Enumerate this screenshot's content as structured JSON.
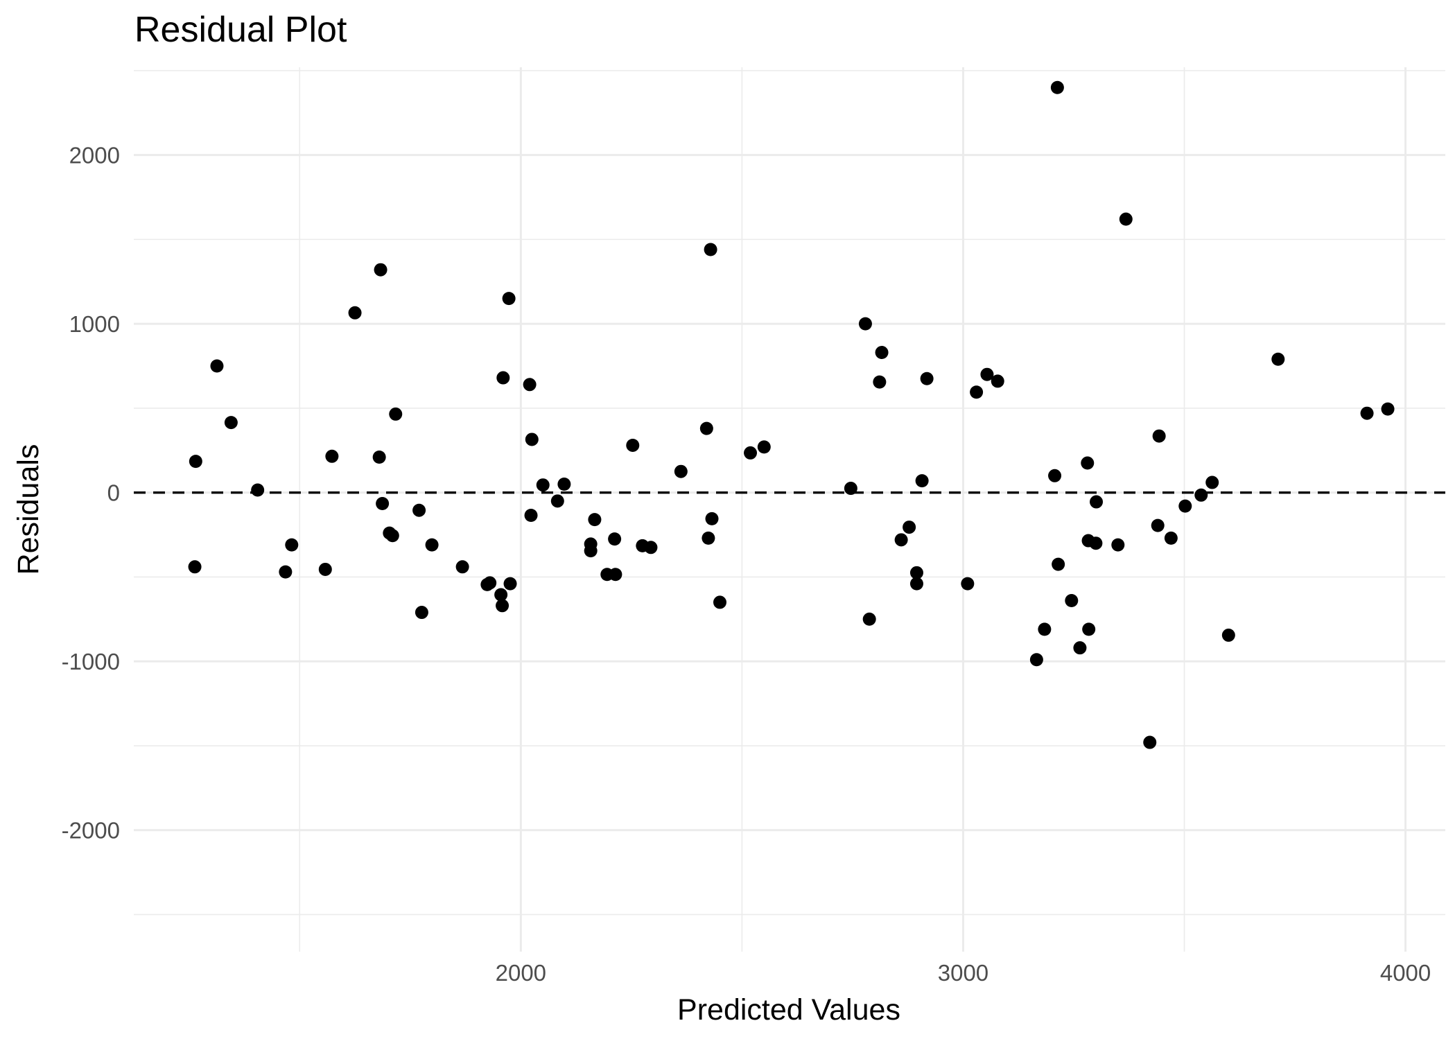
{
  "chart_data": {
    "type": "scatter",
    "title": "Residual Plot",
    "xlabel": "Predicted Values",
    "ylabel": "Residuals",
    "xlim": [
      1125,
      4090
    ],
    "ylim": [
      -2720,
      2520
    ],
    "x_ticks": [
      2000,
      3000,
      4000
    ],
    "x_tick_labels": [
      "2000",
      "3000",
      "4000"
    ],
    "y_ticks": [
      -2000,
      -1000,
      0,
      1000,
      2000
    ],
    "y_tick_labels": [
      "-2000",
      "-1000",
      "0",
      "1000",
      "2000"
    ],
    "grid": true,
    "reference_line": {
      "y": 0,
      "style": "dashed"
    },
    "points": [
      {
        "x": 1265,
        "y": 185
      },
      {
        "x": 1263,
        "y": -440
      },
      {
        "x": 1313,
        "y": 750
      },
      {
        "x": 1345,
        "y": 415
      },
      {
        "x": 1405,
        "y": 15
      },
      {
        "x": 1468,
        "y": -470
      },
      {
        "x": 1482,
        "y": -310
      },
      {
        "x": 1558,
        "y": -455
      },
      {
        "x": 1573,
        "y": 215
      },
      {
        "x": 1625,
        "y": 1065
      },
      {
        "x": 1680,
        "y": 210
      },
      {
        "x": 1683,
        "y": 1320
      },
      {
        "x": 1687,
        "y": -65
      },
      {
        "x": 1703,
        "y": -240
      },
      {
        "x": 1710,
        "y": -255
      },
      {
        "x": 1717,
        "y": 465
      },
      {
        "x": 1770,
        "y": -105
      },
      {
        "x": 1776,
        "y": -710
      },
      {
        "x": 1799,
        "y": -310
      },
      {
        "x": 1868,
        "y": -440
      },
      {
        "x": 1924,
        "y": -545
      },
      {
        "x": 1930,
        "y": -535
      },
      {
        "x": 1955,
        "y": -605
      },
      {
        "x": 1958,
        "y": -670
      },
      {
        "x": 1960,
        "y": 680
      },
      {
        "x": 1973,
        "y": 1150
      },
      {
        "x": 1976,
        "y": -540
      },
      {
        "x": 2020,
        "y": 640
      },
      {
        "x": 2023,
        "y": -135
      },
      {
        "x": 2025,
        "y": 315
      },
      {
        "x": 2050,
        "y": 45
      },
      {
        "x": 2083,
        "y": -50
      },
      {
        "x": 2098,
        "y": 50
      },
      {
        "x": 2158,
        "y": -305
      },
      {
        "x": 2158,
        "y": -345
      },
      {
        "x": 2167,
        "y": -160
      },
      {
        "x": 2195,
        "y": -485
      },
      {
        "x": 2212,
        "y": -275
      },
      {
        "x": 2214,
        "y": -485
      },
      {
        "x": 2253,
        "y": 280
      },
      {
        "x": 2275,
        "y": -315
      },
      {
        "x": 2294,
        "y": -325
      },
      {
        "x": 2362,
        "y": 125
      },
      {
        "x": 2420,
        "y": 380
      },
      {
        "x": 2424,
        "y": -270
      },
      {
        "x": 2429,
        "y": 1440
      },
      {
        "x": 2432,
        "y": -155
      },
      {
        "x": 2450,
        "y": -650
      },
      {
        "x": 2519,
        "y": 235
      },
      {
        "x": 2550,
        "y": 270
      },
      {
        "x": 2746,
        "y": 25
      },
      {
        "x": 2779,
        "y": 1000
      },
      {
        "x": 2788,
        "y": -750
      },
      {
        "x": 2811,
        "y": 655
      },
      {
        "x": 2816,
        "y": 830
      },
      {
        "x": 2860,
        "y": -280
      },
      {
        "x": 2878,
        "y": -205
      },
      {
        "x": 2895,
        "y": -475
      },
      {
        "x": 2895,
        "y": -540
      },
      {
        "x": 2907,
        "y": 70
      },
      {
        "x": 2918,
        "y": 675
      },
      {
        "x": 3010,
        "y": -540
      },
      {
        "x": 3030,
        "y": 595
      },
      {
        "x": 3054,
        "y": 700
      },
      {
        "x": 3078,
        "y": 660
      },
      {
        "x": 3166,
        "y": -990
      },
      {
        "x": 3184,
        "y": -810
      },
      {
        "x": 3207,
        "y": 100
      },
      {
        "x": 3213,
        "y": 2400
      },
      {
        "x": 3215,
        "y": -425
      },
      {
        "x": 3245,
        "y": -640
      },
      {
        "x": 3264,
        "y": -920
      },
      {
        "x": 3281,
        "y": 175
      },
      {
        "x": 3283,
        "y": -285
      },
      {
        "x": 3284,
        "y": -810
      },
      {
        "x": 3300,
        "y": -300
      },
      {
        "x": 3301,
        "y": -55
      },
      {
        "x": 3350,
        "y": -310
      },
      {
        "x": 3368,
        "y": 1620
      },
      {
        "x": 3422,
        "y": -1480
      },
      {
        "x": 3440,
        "y": -195
      },
      {
        "x": 3443,
        "y": 335
      },
      {
        "x": 3470,
        "y": -270
      },
      {
        "x": 3502,
        "y": -80
      },
      {
        "x": 3538,
        "y": -15
      },
      {
        "x": 3563,
        "y": 60
      },
      {
        "x": 3600,
        "y": -845
      },
      {
        "x": 3712,
        "y": 790
      },
      {
        "x": 3913,
        "y": 470
      },
      {
        "x": 3960,
        "y": 495
      }
    ]
  }
}
